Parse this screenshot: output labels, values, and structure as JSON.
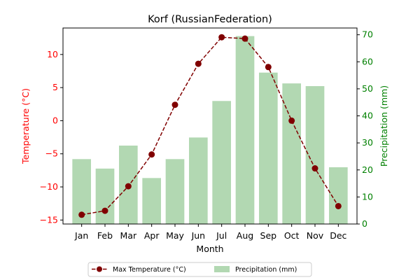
{
  "chart_data": {
    "type": "bar+line",
    "title": "Korf (RussianFederation)",
    "xlabel": "Month",
    "ylabel_left": "Temperature (°C)",
    "ylabel_right": "Precipitation (mm)",
    "categories": [
      "Jan",
      "Feb",
      "Mar",
      "Apr",
      "May",
      "Jun",
      "Jul",
      "Aug",
      "Sep",
      "Oct",
      "Nov",
      "Dec"
    ],
    "series": [
      {
        "name": "Max Temperature (°C)",
        "type": "line",
        "axis": "left",
        "color": "#800000",
        "values": [
          -14.2,
          -13.6,
          -9.9,
          -5.1,
          2.4,
          8.6,
          12.6,
          12.4,
          8.1,
          0.0,
          -7.2,
          -12.9
        ]
      },
      {
        "name": "Precipitation (mm)",
        "type": "bar",
        "axis": "right",
        "color": "#b2d8b2",
        "values": [
          24,
          20.5,
          29,
          17,
          24,
          32,
          45.5,
          69.5,
          56,
          52,
          51,
          21
        ]
      }
    ],
    "ylim_left": [
      -15.6,
      14
    ],
    "yticks_left": [
      -15,
      -10,
      -5,
      0,
      5,
      10
    ],
    "ylim_right": [
      0,
      72.5
    ],
    "yticks_right": [
      0,
      10,
      20,
      30,
      40,
      50,
      60,
      70
    ],
    "left_axis_color": "#ff0000",
    "right_axis_color": "#008000",
    "legend_position": "bottom-center",
    "grid": false
  }
}
